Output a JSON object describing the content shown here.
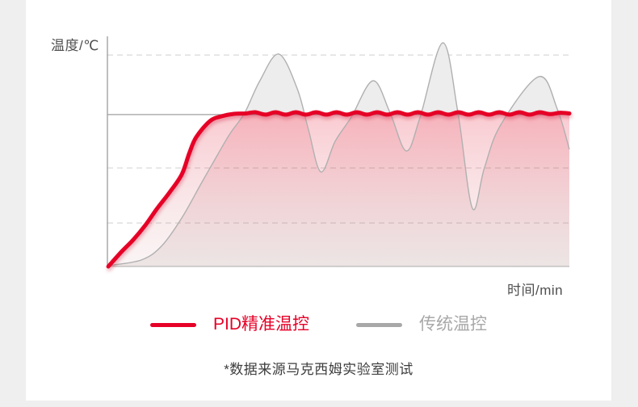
{
  "colors": {
    "page_background": "#efefef",
    "card_background": "#ffffff",
    "accent_red": "#e60127",
    "legend_gray": "#a8a8a8",
    "axis_line": "#949494",
    "baseline": "#c9c9c9",
    "gridline": "#d9d9d9",
    "setpoint_line": "#9f9f9f",
    "label_text": "#4f4f4f",
    "footnote_text": "#3d3d3d"
  },
  "footnote": "*数据来源马克西姆实验室测试",
  "chart_data": {
    "type": "line",
    "title": "",
    "ylabel": "温度/℃",
    "xlabel": "时间/min",
    "x_range": [
      0,
      100
    ],
    "y_range": [
      0,
      100
    ],
    "grid": "dashed-horizontal",
    "gridlines_pct": [
      91.9,
      42.8,
      18.9
    ],
    "setpoint_pct": 66.0,
    "legend_position": "bottom",
    "annotation": "red PID curve rises smoothly and holds the target temperature; gray traditional curve overshoots and oscillates",
    "series": [
      {
        "name": "PID精准温控",
        "color": "#e60127",
        "line_width": 5,
        "fill": "pink-gradient",
        "points": [
          [
            0.2,
            0
          ],
          [
            3,
            6.3
          ],
          [
            5.6,
            11.6
          ],
          [
            8.2,
            17.9
          ],
          [
            10.8,
            25.3
          ],
          [
            13.5,
            32.3
          ],
          [
            16.1,
            40
          ],
          [
            17.7,
            49
          ],
          [
            19.2,
            56.1
          ],
          [
            22.2,
            63.2
          ],
          [
            24.8,
            65.3
          ],
          [
            27.4,
            66.3
          ],
          [
            30,
            66.5
          ],
          [
            32,
            67
          ],
          [
            34.2,
            66
          ],
          [
            36.4,
            67
          ],
          [
            38.6,
            66
          ],
          [
            40.8,
            67
          ],
          [
            43,
            66
          ],
          [
            45.2,
            67
          ],
          [
            47.4,
            66
          ],
          [
            49.6,
            67
          ],
          [
            51.8,
            66
          ],
          [
            54,
            67
          ],
          [
            56.2,
            66
          ],
          [
            58.4,
            67
          ],
          [
            60.6,
            66
          ],
          [
            62.8,
            67
          ],
          [
            65,
            66
          ],
          [
            67.2,
            67
          ],
          [
            69.4,
            66
          ],
          [
            71.6,
            67
          ],
          [
            73.8,
            66
          ],
          [
            76,
            67
          ],
          [
            78.2,
            66
          ],
          [
            80.4,
            67
          ],
          [
            82.6,
            66
          ],
          [
            84.8,
            67
          ],
          [
            87,
            66
          ],
          [
            89.2,
            67
          ],
          [
            91.4,
            66
          ],
          [
            93.6,
            67
          ],
          [
            95.8,
            66.2
          ],
          [
            98,
            66.8
          ],
          [
            100,
            66.5
          ]
        ]
      },
      {
        "name": "传统温控",
        "color": "#b0b0b0",
        "line_width": 1.4,
        "fill": "gray-gradient",
        "points": [
          [
            0.2,
            0.4
          ],
          [
            7.3,
            2.8
          ],
          [
            11.7,
            8.8
          ],
          [
            16.1,
            21.1
          ],
          [
            20.5,
            36.8
          ],
          [
            24,
            49.1
          ],
          [
            26.6,
            57.9
          ],
          [
            29.7,
            66.7
          ],
          [
            33,
            80.7
          ],
          [
            37.1,
            92.3
          ],
          [
            41.1,
            77.2
          ],
          [
            43.5,
            59.6
          ],
          [
            46.2,
            41.1
          ],
          [
            49.3,
            54.4
          ],
          [
            52.8,
            64.9
          ],
          [
            57.5,
            80.7
          ],
          [
            61.2,
            66.7
          ],
          [
            64.7,
            50.2
          ],
          [
            67.7,
            64.9
          ],
          [
            72.6,
            97.2
          ],
          [
            75.9,
            66.7
          ],
          [
            79,
            25.3
          ],
          [
            81.6,
            42.8
          ],
          [
            85.1,
            61.4
          ],
          [
            93.4,
            82.5
          ],
          [
            97.4,
            68.4
          ],
          [
            100,
            50.9
          ]
        ]
      }
    ]
  }
}
